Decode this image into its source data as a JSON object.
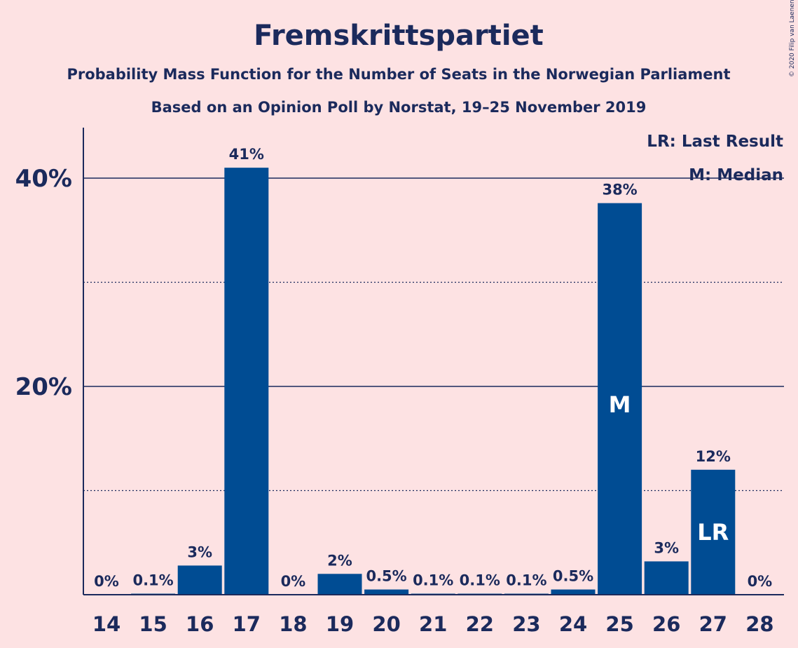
{
  "copyright": "© 2020 Filip van Laenen",
  "chart_data": {
    "type": "bar",
    "title": "Fremskrittspartiet",
    "subtitle": "Probability Mass Function for the Number of Seats in the Norwegian Parliament",
    "subtitle2": "Based on an Opinion Poll by Norstat, 19–25 November 2019",
    "categories": [
      "14",
      "15",
      "16",
      "17",
      "18",
      "19",
      "20",
      "21",
      "22",
      "23",
      "24",
      "25",
      "26",
      "27",
      "28"
    ],
    "values": [
      0,
      0.1,
      2.8,
      41,
      0,
      2,
      0.5,
      0.1,
      0.1,
      0.1,
      0.5,
      37.6,
      3.2,
      12,
      0
    ],
    "value_labels": [
      "0%",
      "0.1%",
      "3%",
      "41%",
      "0%",
      "2%",
      "0.5%",
      "0.1%",
      "0.1%",
      "0.1%",
      "0.5%",
      "38%",
      "3%",
      "12%",
      "0%"
    ],
    "bar_annotations": [
      {
        "category": "25",
        "text": "M"
      },
      {
        "category": "27",
        "text": "LR"
      }
    ],
    "ylim": [
      0,
      44.6
    ],
    "yticks": [
      {
        "value": 20,
        "label": "20%"
      },
      {
        "value": 40,
        "label": "40%"
      }
    ],
    "minor_gridlines": [
      10,
      30
    ],
    "legend": {
      "position": "top-right",
      "entries": [
        "LR: Last Result",
        "M: Median"
      ]
    },
    "colors": {
      "background": "#FDE2E3",
      "bar": "#004C93",
      "text": "#1B2A5C"
    }
  }
}
